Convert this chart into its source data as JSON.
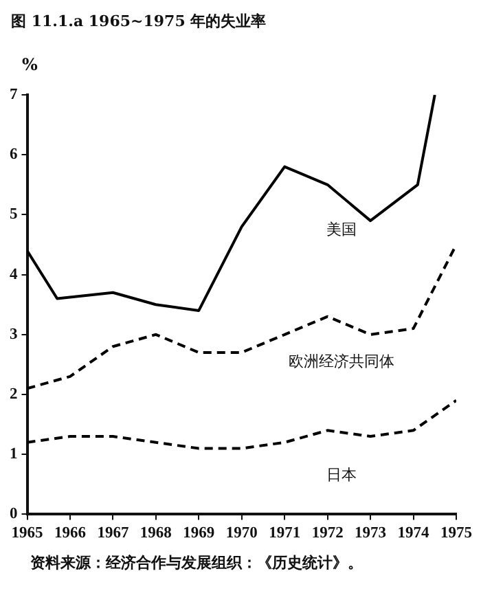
{
  "chart_data": {
    "type": "line",
    "title": "图 11.1.a 1965~1975 年的失业率",
    "ylabel": "%",
    "annotations": [
      "资料来源：经济合作与发展组织：《历史统计》。"
    ],
    "series": [
      {
        "name": "美国",
        "color": "#000000",
        "line_style": "solid",
        "x": [
          1965,
          1965.7,
          1967,
          1968,
          1969,
          1970,
          1971,
          1972,
          1973,
          1974.1,
          1974.5
        ],
        "values": [
          4.4,
          3.6,
          3.7,
          3.5,
          3.4,
          4.8,
          5.8,
          5.5,
          4.9,
          5.5,
          7.0
        ]
      },
      {
        "name": "欧洲经济共同体",
        "color": "#000000",
        "line_style": "dashed",
        "x": [
          1965,
          1966,
          1967,
          1968,
          1969,
          1970,
          1971,
          1972,
          1973,
          1974,
          1975
        ],
        "values": [
          2.1,
          2.3,
          2.8,
          3.0,
          2.7,
          2.7,
          3.0,
          3.3,
          3.0,
          3.1,
          4.5
        ]
      },
      {
        "name": "日本",
        "color": "#000000",
        "line_style": "dashed",
        "x": [
          1965,
          1966,
          1967,
          1968,
          1969,
          1970,
          1971,
          1972,
          1973,
          1974,
          1975
        ],
        "values": [
          1.2,
          1.3,
          1.3,
          1.2,
          1.1,
          1.1,
          1.2,
          1.4,
          1.3,
          1.4,
          1.9
        ]
      }
    ],
    "xlim": [
      1965,
      1975
    ],
    "xticks": [
      1965,
      1966,
      1967,
      1968,
      1969,
      1970,
      1971,
      1972,
      1973,
      1974,
      1975
    ],
    "ylim": [
      0,
      7
    ],
    "yticks": [
      0,
      1,
      2,
      3,
      4,
      5,
      6,
      7
    ],
    "grid": false,
    "legend": false,
    "marker": "none"
  }
}
